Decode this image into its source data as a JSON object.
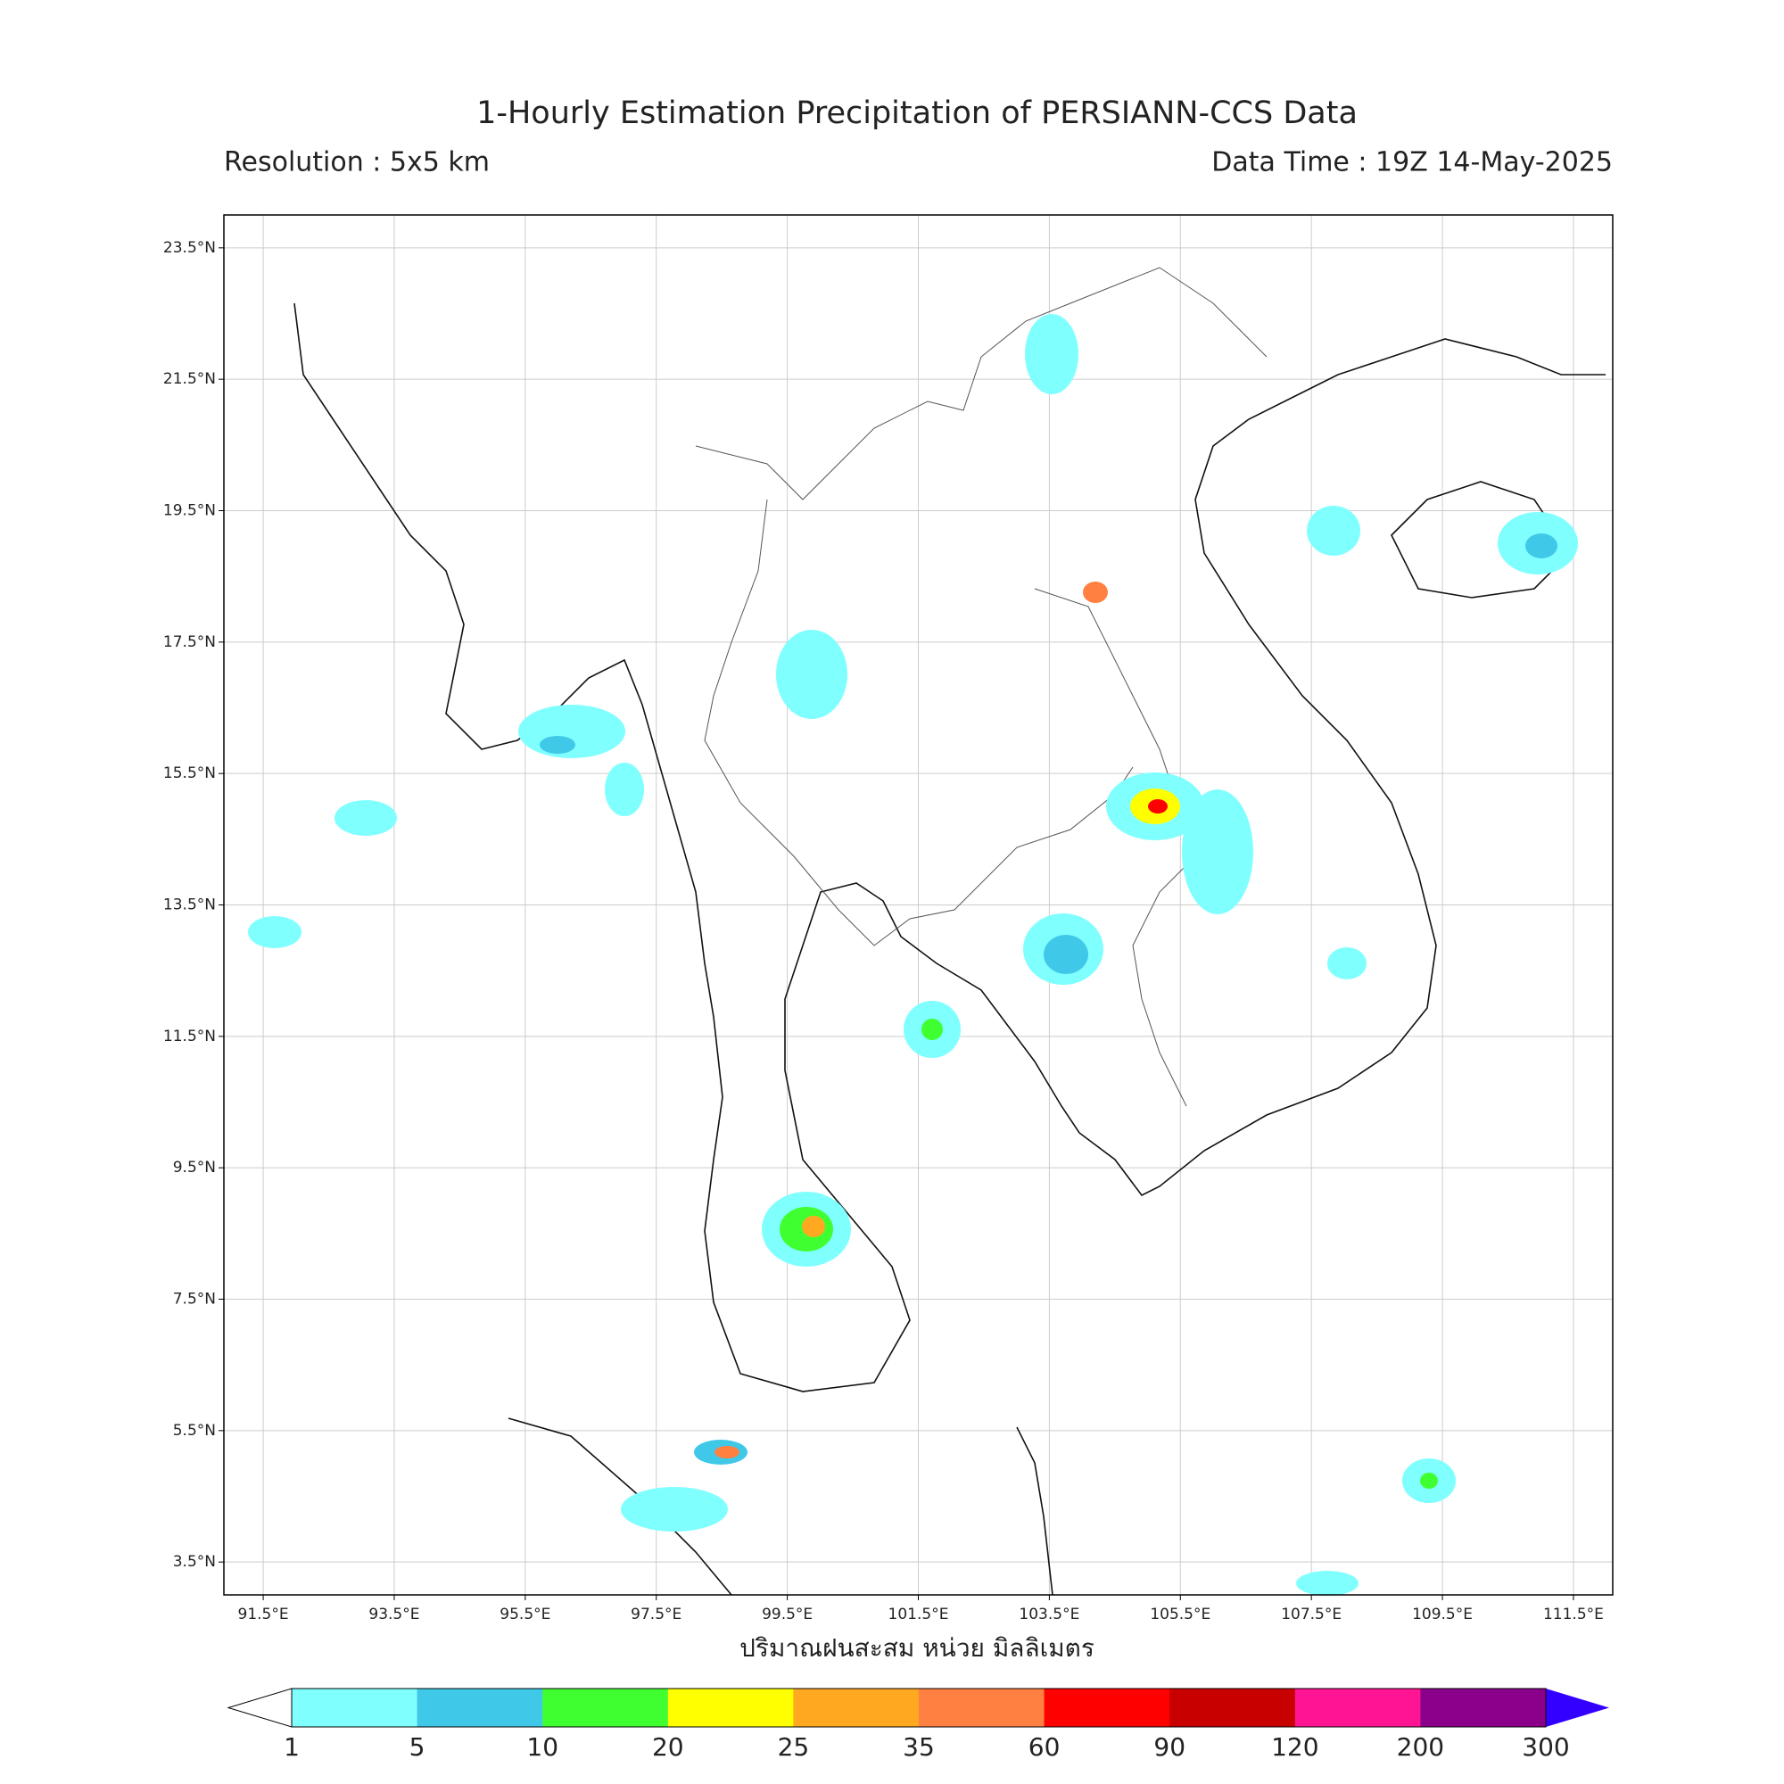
{
  "header": {
    "title": "1-Hourly Estimation Precipitation of PERSIANN-CCS Data",
    "resolution": "Resolution : 5x5 km",
    "data_time": "Data Time : 19Z 14-May-2025"
  },
  "map": {
    "lon_range": [
      90.9,
      112.1
    ],
    "lat_range": [
      3,
      24
    ],
    "lon_ticks": [
      {
        "value": 91.5,
        "label": "91.5°E"
      },
      {
        "value": 93.5,
        "label": "93.5°E"
      },
      {
        "value": 95.5,
        "label": "95.5°E"
      },
      {
        "value": 97.5,
        "label": "97.5°E"
      },
      {
        "value": 99.5,
        "label": "99.5°E"
      },
      {
        "value": 101.5,
        "label": "101.5°E"
      },
      {
        "value": 103.5,
        "label": "103.5°E"
      },
      {
        "value": 105.5,
        "label": "105.5°E"
      },
      {
        "value": 107.5,
        "label": "107.5°E"
      },
      {
        "value": 109.5,
        "label": "109.5°E"
      },
      {
        "value": 111.5,
        "label": "111.5°E"
      }
    ],
    "lat_ticks": [
      {
        "value": 23.5,
        "label": "23.5°N"
      },
      {
        "value": 21.5,
        "label": "21.5°N"
      },
      {
        "value": 19.5,
        "label": "19.5°N"
      },
      {
        "value": 17.5,
        "label": "17.5°N"
      },
      {
        "value": 15.5,
        "label": "15.5°N"
      },
      {
        "value": 13.5,
        "label": "13.5°N"
      },
      {
        "value": 11.5,
        "label": "11.5°N"
      },
      {
        "value": 9.5,
        "label": "9.5°N"
      },
      {
        "value": 7.5,
        "label": "7.5°N"
      },
      {
        "value": 5.5,
        "label": "5.5°N"
      },
      {
        "value": 3.5,
        "label": "3.5°N"
      }
    ],
    "grid": true
  },
  "colorbar": {
    "label": "ปริมาณฝนสะสม หน่วย มิลลิเมตร",
    "levels": [
      1,
      5,
      10,
      20,
      25,
      35,
      60,
      90,
      120,
      200,
      300
    ],
    "colors": [
      "#80ffff",
      "#40c8e8",
      "#40ff30",
      "#ffff00",
      "#ffa820",
      "#ff8040",
      "#ff0000",
      "#c80000",
      "#ff1493",
      "#8b008b"
    ],
    "under_color": "#ffffff",
    "over_color": "#3300ff"
  }
}
